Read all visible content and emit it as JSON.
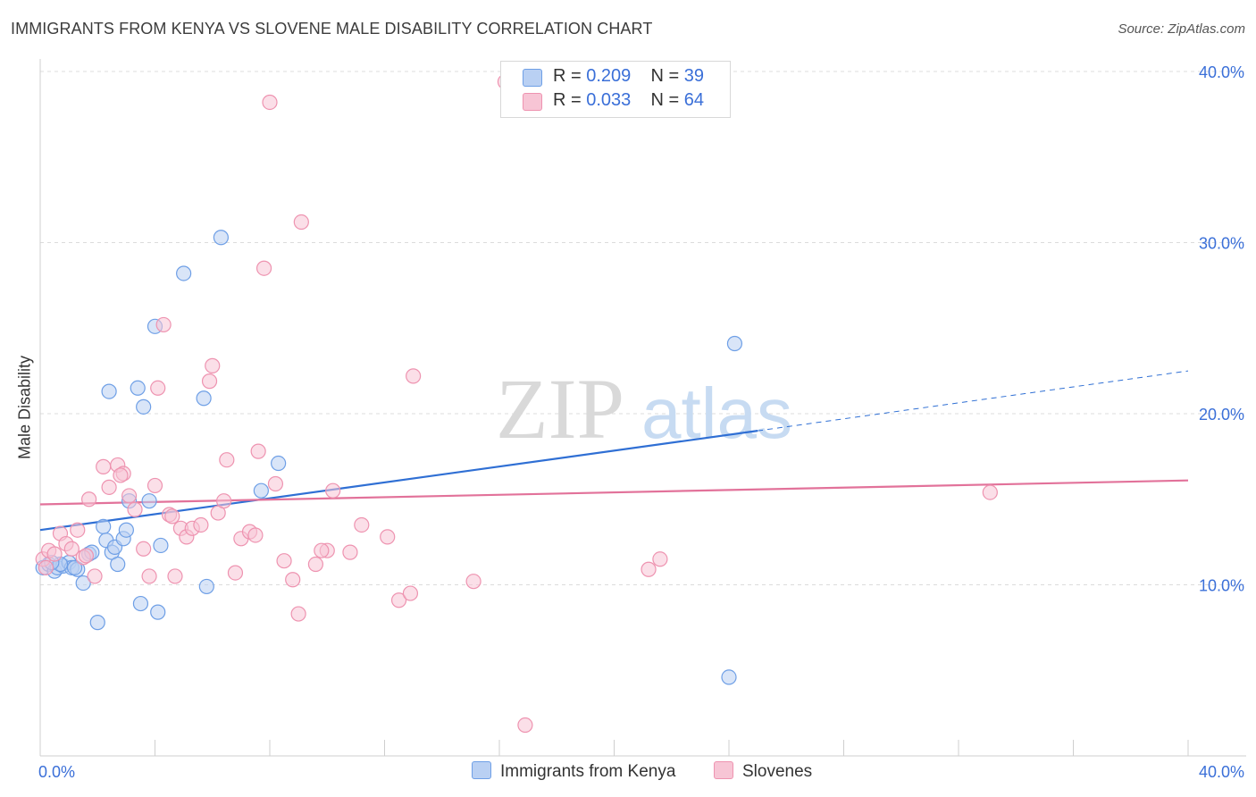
{
  "title": "IMMIGRANTS FROM KENYA VS SLOVENE MALE DISABILITY CORRELATION CHART",
  "source": "Source: ZipAtlas.com",
  "watermark": {
    "zip": "ZIP",
    "atlas": "atlas"
  },
  "legend": {
    "r_label": "R =",
    "n_label": "N =",
    "series": [
      {
        "r": "0.209",
        "n": "39"
      },
      {
        "r": "0.033",
        "n": "64"
      }
    ]
  },
  "chart_data": {
    "type": "scatter",
    "title": "IMMIGRANTS FROM KENYA VS SLOVENE MALE DISABILITY CORRELATION CHART",
    "xlabel": "",
    "ylabel": "Male Disability",
    "xlim": [
      0,
      40
    ],
    "ylim": [
      0,
      40
    ],
    "x_tick_labels": [
      "0.0%",
      "40.0%"
    ],
    "y_ticks": [
      10,
      20,
      30,
      40
    ],
    "y_tick_labels": [
      "10.0%",
      "20.0%",
      "30.0%",
      "40.0%"
    ],
    "grid": true,
    "legend_position": "top-center",
    "series": [
      {
        "name": "Immigrants from Kenya",
        "color": "#6e9fe6",
        "fill": "#b9d0f3",
        "line_color": "#2f6fd4",
        "r": 0.209,
        "n": 39,
        "trend": {
          "x0": 0,
          "y0": 13.2,
          "x1": 25,
          "y1": 19.0,
          "dashed_to_x": 40,
          "dashed_to_y": 22.5
        },
        "points": [
          [
            0.1,
            11.0
          ],
          [
            0.3,
            11.2
          ],
          [
            0.5,
            10.8
          ],
          [
            0.6,
            11.0
          ],
          [
            0.8,
            11.1
          ],
          [
            1.0,
            11.3
          ],
          [
            1.1,
            11.0
          ],
          [
            1.3,
            10.9
          ],
          [
            1.5,
            10.1
          ],
          [
            1.7,
            11.8
          ],
          [
            2.0,
            7.8
          ],
          [
            2.2,
            13.4
          ],
          [
            2.3,
            12.6
          ],
          [
            2.4,
            21.3
          ],
          [
            2.5,
            11.9
          ],
          [
            2.6,
            12.2
          ],
          [
            2.7,
            11.2
          ],
          [
            2.9,
            12.7
          ],
          [
            3.0,
            13.2
          ],
          [
            3.1,
            14.9
          ],
          [
            3.4,
            21.5
          ],
          [
            3.5,
            8.9
          ],
          [
            3.6,
            20.4
          ],
          [
            3.8,
            14.9
          ],
          [
            4.0,
            25.1
          ],
          [
            4.1,
            8.4
          ],
          [
            4.2,
            12.3
          ],
          [
            5.0,
            28.2
          ],
          [
            5.7,
            20.9
          ],
          [
            5.8,
            9.9
          ],
          [
            6.3,
            30.3
          ],
          [
            7.7,
            15.5
          ],
          [
            8.3,
            17.1
          ],
          [
            24.2,
            24.1
          ],
          [
            24.0,
            4.6
          ],
          [
            0.7,
            11.2
          ],
          [
            1.2,
            11.0
          ],
          [
            0.4,
            11.3
          ],
          [
            1.8,
            11.9
          ]
        ]
      },
      {
        "name": "Slovenes",
        "color": "#ee93b0",
        "fill": "#f7c5d5",
        "line_color": "#e2729a",
        "r": 0.033,
        "n": 64,
        "trend": {
          "x0": 0,
          "y0": 14.7,
          "x1": 40,
          "y1": 16.1
        },
        "points": [
          [
            0.1,
            11.5
          ],
          [
            0.3,
            12.0
          ],
          [
            0.5,
            11.8
          ],
          [
            0.7,
            13.0
          ],
          [
            0.9,
            12.4
          ],
          [
            1.1,
            12.1
          ],
          [
            1.3,
            13.2
          ],
          [
            1.5,
            11.6
          ],
          [
            1.7,
            15.0
          ],
          [
            1.9,
            10.5
          ],
          [
            2.2,
            16.9
          ],
          [
            2.4,
            15.7
          ],
          [
            2.7,
            17.0
          ],
          [
            2.9,
            16.5
          ],
          [
            3.1,
            15.2
          ],
          [
            3.3,
            14.4
          ],
          [
            3.6,
            12.1
          ],
          [
            3.8,
            10.5
          ],
          [
            4.0,
            15.8
          ],
          [
            4.1,
            21.5
          ],
          [
            4.3,
            25.2
          ],
          [
            4.5,
            14.1
          ],
          [
            4.7,
            10.5
          ],
          [
            4.9,
            13.3
          ],
          [
            5.1,
            12.8
          ],
          [
            5.3,
            13.3
          ],
          [
            5.6,
            13.5
          ],
          [
            5.9,
            21.9
          ],
          [
            6.0,
            22.8
          ],
          [
            6.2,
            14.2
          ],
          [
            6.4,
            14.9
          ],
          [
            6.5,
            17.3
          ],
          [
            6.8,
            10.7
          ],
          [
            7.0,
            12.7
          ],
          [
            7.3,
            13.1
          ],
          [
            7.5,
            12.9
          ],
          [
            7.6,
            17.8
          ],
          [
            7.8,
            28.5
          ],
          [
            8.0,
            38.2
          ],
          [
            8.2,
            15.9
          ],
          [
            8.5,
            11.4
          ],
          [
            8.8,
            10.3
          ],
          [
            9.0,
            8.3
          ],
          [
            9.1,
            31.2
          ],
          [
            9.6,
            11.2
          ],
          [
            10.0,
            12.0
          ],
          [
            10.2,
            15.5
          ],
          [
            10.8,
            11.9
          ],
          [
            11.2,
            13.5
          ],
          [
            12.1,
            12.8
          ],
          [
            12.5,
            9.1
          ],
          [
            12.9,
            9.5
          ],
          [
            13.0,
            22.2
          ],
          [
            15.1,
            10.2
          ],
          [
            16.2,
            39.4
          ],
          [
            16.9,
            1.8
          ],
          [
            21.2,
            10.9
          ],
          [
            21.6,
            11.5
          ],
          [
            33.1,
            15.4
          ],
          [
            0.2,
            11.0
          ],
          [
            1.6,
            11.7
          ],
          [
            2.8,
            16.4
          ],
          [
            4.6,
            14.0
          ],
          [
            9.8,
            12.0
          ]
        ]
      }
    ]
  }
}
